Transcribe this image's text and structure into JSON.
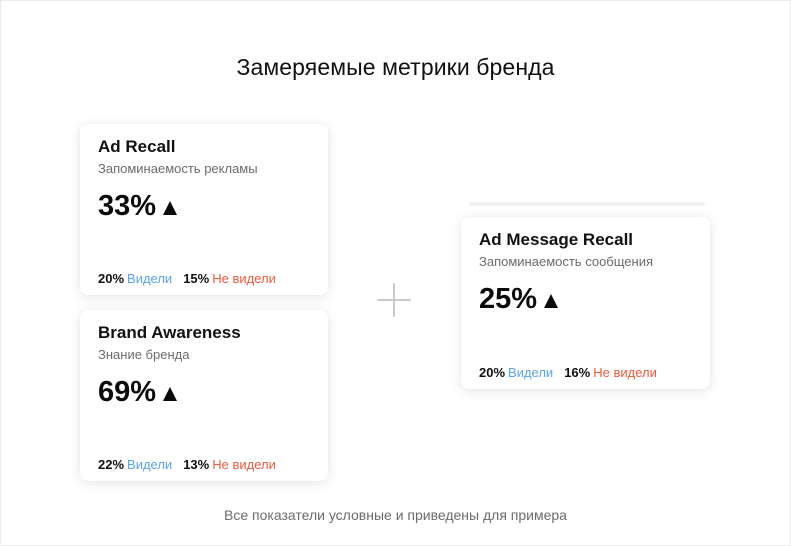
{
  "page_title": "Замеряемые метрики бренда",
  "footnote": "Все показатели условные и приведены для примера",
  "cards": [
    {
      "title": "Ad Recall",
      "subtitle": "Запоминаемость рекламы",
      "value": "33%",
      "trend_icon": "arrow-up-icon",
      "seen_pct": "20%",
      "seen_label": "Видели",
      "unseen_pct": "15%",
      "unseen_label": "Не видели"
    },
    {
      "title": "Brand Awareness",
      "subtitle": "Знание бренда",
      "value": "69%",
      "trend_icon": "arrow-up-icon",
      "seen_pct": "22%",
      "seen_label": "Видели",
      "unseen_pct": "13%",
      "unseen_label": "Не видели"
    },
    {
      "title": "Ad Message Recall",
      "subtitle": "Запоминаемость сообщения",
      "value": "25%",
      "trend_icon": "arrow-up-icon",
      "seen_pct": "20%",
      "seen_label": "Видели",
      "unseen_pct": "16%",
      "unseen_label": "Не видели"
    }
  ],
  "colors": {
    "seen": "#5aa3e8",
    "unseen": "#f05a3c",
    "subtitle": "#6b6b6b",
    "plus": "#c9c9c9"
  }
}
